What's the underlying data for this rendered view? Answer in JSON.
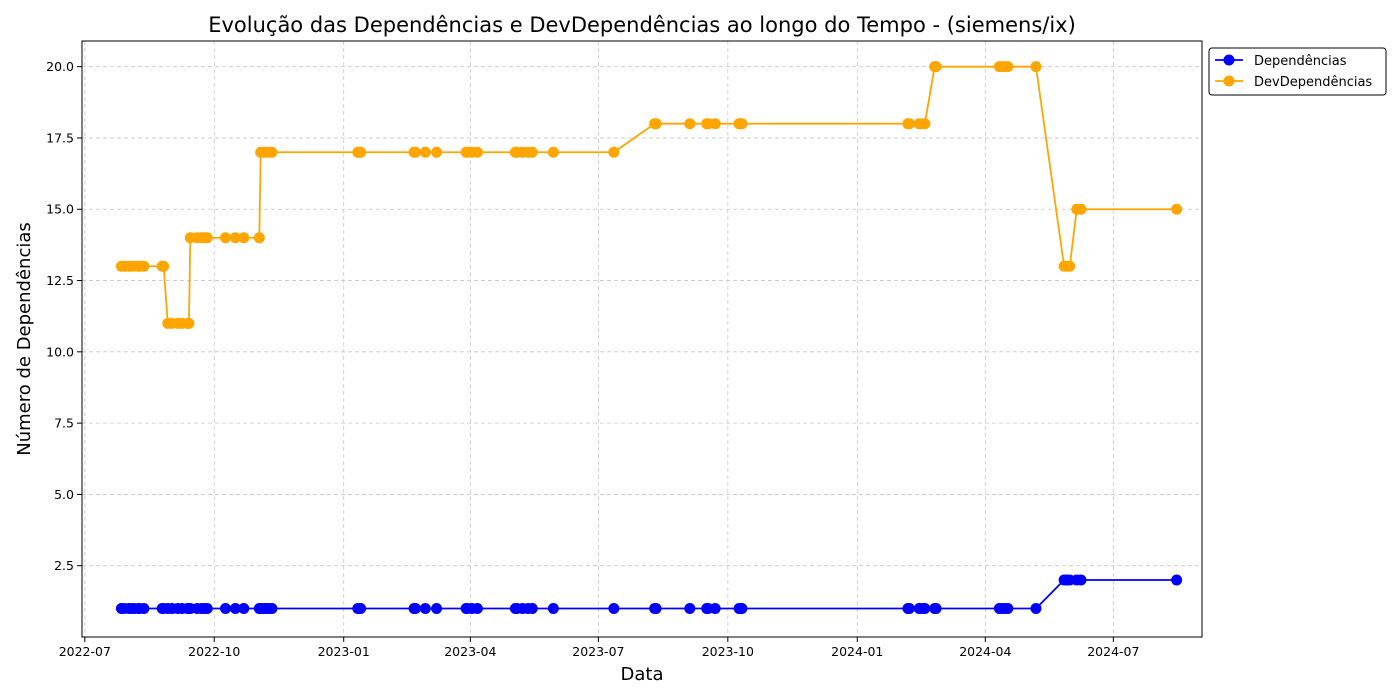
{
  "chart_data": {
    "type": "line",
    "title": "Evolução das Dependências e DevDependências ao longo do Tempo - (siemens/ix)",
    "xlabel": "Data",
    "ylabel": "Número de Dependências",
    "xlim": [
      "2022-06-29",
      "2024-09-02"
    ],
    "ylim": [
      0.0,
      20.9
    ],
    "x_ticks": [
      "2022-07",
      "2022-10",
      "2023-01",
      "2023-04",
      "2023-07",
      "2023-10",
      "2024-01",
      "2024-04",
      "2024-07"
    ],
    "y_ticks": [
      "2.5",
      "5.0",
      "7.5",
      "10.0",
      "12.5",
      "15.0",
      "17.5",
      "20.0"
    ],
    "grid": true,
    "legend_position": "outside-top-right",
    "x": [
      "2022-07-27",
      "2022-07-29",
      "2022-08-01",
      "2022-08-03",
      "2022-08-05",
      "2022-08-08",
      "2022-08-09",
      "2022-08-12",
      "2022-08-25",
      "2022-08-26",
      "2022-08-29",
      "2022-09-01",
      "2022-09-05",
      "2022-09-08",
      "2022-09-12",
      "2022-09-13",
      "2022-09-14",
      "2022-09-19",
      "2022-09-22",
      "2022-09-24",
      "2022-09-26",
      "2022-10-09",
      "2022-10-16",
      "2022-10-22",
      "2022-11-02",
      "2022-11-03",
      "2022-11-04",
      "2022-11-06",
      "2022-11-07",
      "2022-11-09",
      "2022-11-11",
      "2023-01-11",
      "2023-01-12",
      "2023-01-13",
      "2023-02-20",
      "2023-02-21",
      "2023-02-28",
      "2023-03-08",
      "2023-03-29",
      "2023-03-30",
      "2023-04-02",
      "2023-04-06",
      "2023-05-03",
      "2023-05-04",
      "2023-05-08",
      "2023-05-12",
      "2023-05-15",
      "2023-05-30",
      "2023-07-12",
      "2023-08-10",
      "2023-08-11",
      "2023-09-04",
      "2023-09-16",
      "2023-09-17",
      "2023-09-22",
      "2023-10-09",
      "2023-10-10",
      "2023-10-11",
      "2024-02-06",
      "2024-02-07",
      "2024-02-14",
      "2024-02-16",
      "2024-02-18",
      "2024-02-25",
      "2024-02-26",
      "2024-04-11",
      "2024-04-13",
      "2024-04-15",
      "2024-04-17",
      "2024-05-07",
      "2024-05-27",
      "2024-05-29",
      "2024-05-31",
      "2024-06-05",
      "2024-06-08",
      "2024-08-15"
    ],
    "series": [
      {
        "name": "Dependências",
        "color": "#0000ff",
        "values": [
          1,
          1,
          1,
          1,
          1,
          1,
          1,
          1,
          1,
          1,
          1,
          1,
          1,
          1,
          1,
          1,
          1,
          1,
          1,
          1,
          1,
          1,
          1,
          1,
          1,
          1,
          1,
          1,
          1,
          1,
          1,
          1,
          1,
          1,
          1,
          1,
          1,
          1,
          1,
          1,
          1,
          1,
          1,
          1,
          1,
          1,
          1,
          1,
          1,
          1,
          1,
          1,
          1,
          1,
          1,
          1,
          1,
          1,
          1,
          1,
          1,
          1,
          1,
          1,
          1,
          1,
          1,
          1,
          1,
          1,
          2,
          2,
          2,
          2,
          2,
          2
        ]
      },
      {
        "name": "DevDependências",
        "color": "#ffa500",
        "values": [
          13,
          13,
          13,
          13,
          13,
          13,
          13,
          13,
          13,
          13,
          11,
          11,
          11,
          11,
          11,
          11,
          14,
          14,
          14,
          14,
          14,
          14,
          14,
          14,
          14,
          17,
          17,
          17,
          17,
          17,
          17,
          17,
          17,
          17,
          17,
          17,
          17,
          17,
          17,
          17,
          17,
          17,
          17,
          17,
          17,
          17,
          17,
          17,
          17,
          18,
          18,
          18,
          18,
          18,
          18,
          18,
          18,
          18,
          18,
          18,
          18,
          18,
          18,
          20,
          20,
          20,
          20,
          20,
          20,
          20,
          13,
          13,
          13,
          15,
          15,
          15
        ]
      }
    ]
  }
}
